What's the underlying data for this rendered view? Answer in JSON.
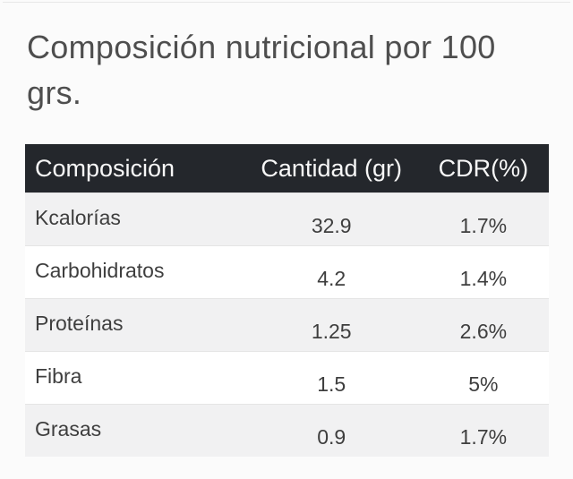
{
  "title": "Composición nutricional por 100 grs.",
  "table": {
    "columns": [
      "Composición",
      "Cantidad (gr)",
      "CDR(%)"
    ],
    "rows": [
      {
        "name": "Kcalorías",
        "cantidad": "32.9",
        "cdr": "1.7%"
      },
      {
        "name": "Carbohidratos",
        "cantidad": "4.2",
        "cdr": "1.4%"
      },
      {
        "name": "Proteínas",
        "cantidad": "1.25",
        "cdr": "2.6%"
      },
      {
        "name": "Fibra",
        "cantidad": "1.5",
        "cdr": "5%"
      },
      {
        "name": "Grasas",
        "cantidad": "0.9",
        "cdr": "1.7%"
      }
    ]
  },
  "colors": {
    "page_bg": "#fbfbfb",
    "header_bg": "#24272c",
    "header_text": "#f7f7f7",
    "row_bg": "#ffffff",
    "row_alt_bg": "#f1f1f2",
    "body_text": "#3e3e3e",
    "title_text": "#4e4e4e"
  }
}
